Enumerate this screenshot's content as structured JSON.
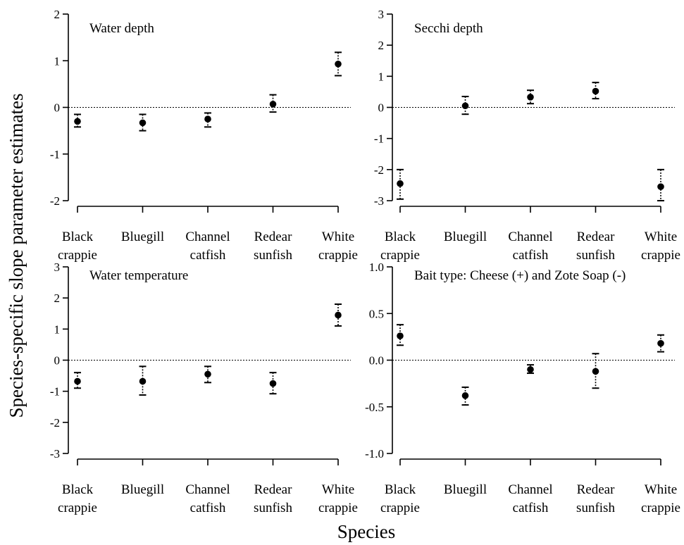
{
  "figure": {
    "ylabel": "Species-specific slope parameter estimates",
    "xlabel": "Species"
  },
  "chart_data": [
    {
      "type": "scatter",
      "title": "Water depth",
      "categories": [
        "Black crappie",
        "Bluegill",
        "Channel catfish",
        "Redear sunfish",
        "White crappie"
      ],
      "values": [
        -0.3,
        -0.33,
        -0.25,
        0.07,
        0.93
      ],
      "lower": [
        -0.42,
        -0.5,
        -0.42,
        -0.1,
        0.68
      ],
      "upper": [
        -0.15,
        -0.15,
        -0.12,
        0.27,
        1.18
      ],
      "ylim": [
        -2,
        2
      ],
      "yticks": [
        "-2",
        "-1",
        "0",
        "1",
        "2"
      ],
      "reference_line": 0
    },
    {
      "type": "scatter",
      "title": "Secchi depth",
      "categories": [
        "Black crappie",
        "Bluegill",
        "Channel catfish",
        "Redear sunfish",
        "White crappie"
      ],
      "values": [
        -2.45,
        0.05,
        0.33,
        0.52,
        -2.55
      ],
      "lower": [
        -2.95,
        -0.22,
        0.12,
        0.28,
        -3.0
      ],
      "upper": [
        -2.0,
        0.35,
        0.55,
        0.8,
        -2.0
      ],
      "ylim": [
        -3,
        3
      ],
      "yticks": [
        "-3",
        "-2",
        "-1",
        "0",
        "1",
        "2",
        "3"
      ],
      "reference_line": 0
    },
    {
      "type": "scatter",
      "title": "Water temperature",
      "categories": [
        "Black crappie",
        "Bluegill",
        "Channel catfish",
        "Redear sunfish",
        "White crappie"
      ],
      "values": [
        -0.68,
        -0.68,
        -0.45,
        -0.75,
        1.45
      ],
      "lower": [
        -0.9,
        -1.12,
        -0.72,
        -1.08,
        1.1
      ],
      "upper": [
        -0.4,
        -0.2,
        -0.2,
        -0.4,
        1.8
      ],
      "ylim": [
        -3,
        3
      ],
      "yticks": [
        "-3",
        "-2",
        "-1",
        "0",
        "1",
        "2",
        "3"
      ],
      "reference_line": 0
    },
    {
      "type": "scatter",
      "title": "Bait type: Cheese (+) and Zote Soap (-)",
      "categories": [
        "Black crappie",
        "Bluegill",
        "Channel catfish",
        "Redear sunfish",
        "White crappie"
      ],
      "values": [
        0.26,
        -0.38,
        -0.1,
        -0.12,
        0.18
      ],
      "lower": [
        0.16,
        -0.48,
        -0.14,
        -0.3,
        0.09
      ],
      "upper": [
        0.38,
        -0.29,
        -0.05,
        0.07,
        0.27
      ],
      "ylim": [
        -1.0,
        1.0
      ],
      "yticks": [
        "-1.0",
        "-0.5",
        "0.0",
        "0.5",
        "1.0"
      ],
      "reference_line": 0
    }
  ],
  "xtick_labels": [
    [
      "Black",
      "crappie"
    ],
    [
      "Bluegill",
      ""
    ],
    [
      "Channel",
      "catfish"
    ],
    [
      "Redear",
      "sunfish"
    ],
    [
      "White",
      "crappie"
    ]
  ]
}
